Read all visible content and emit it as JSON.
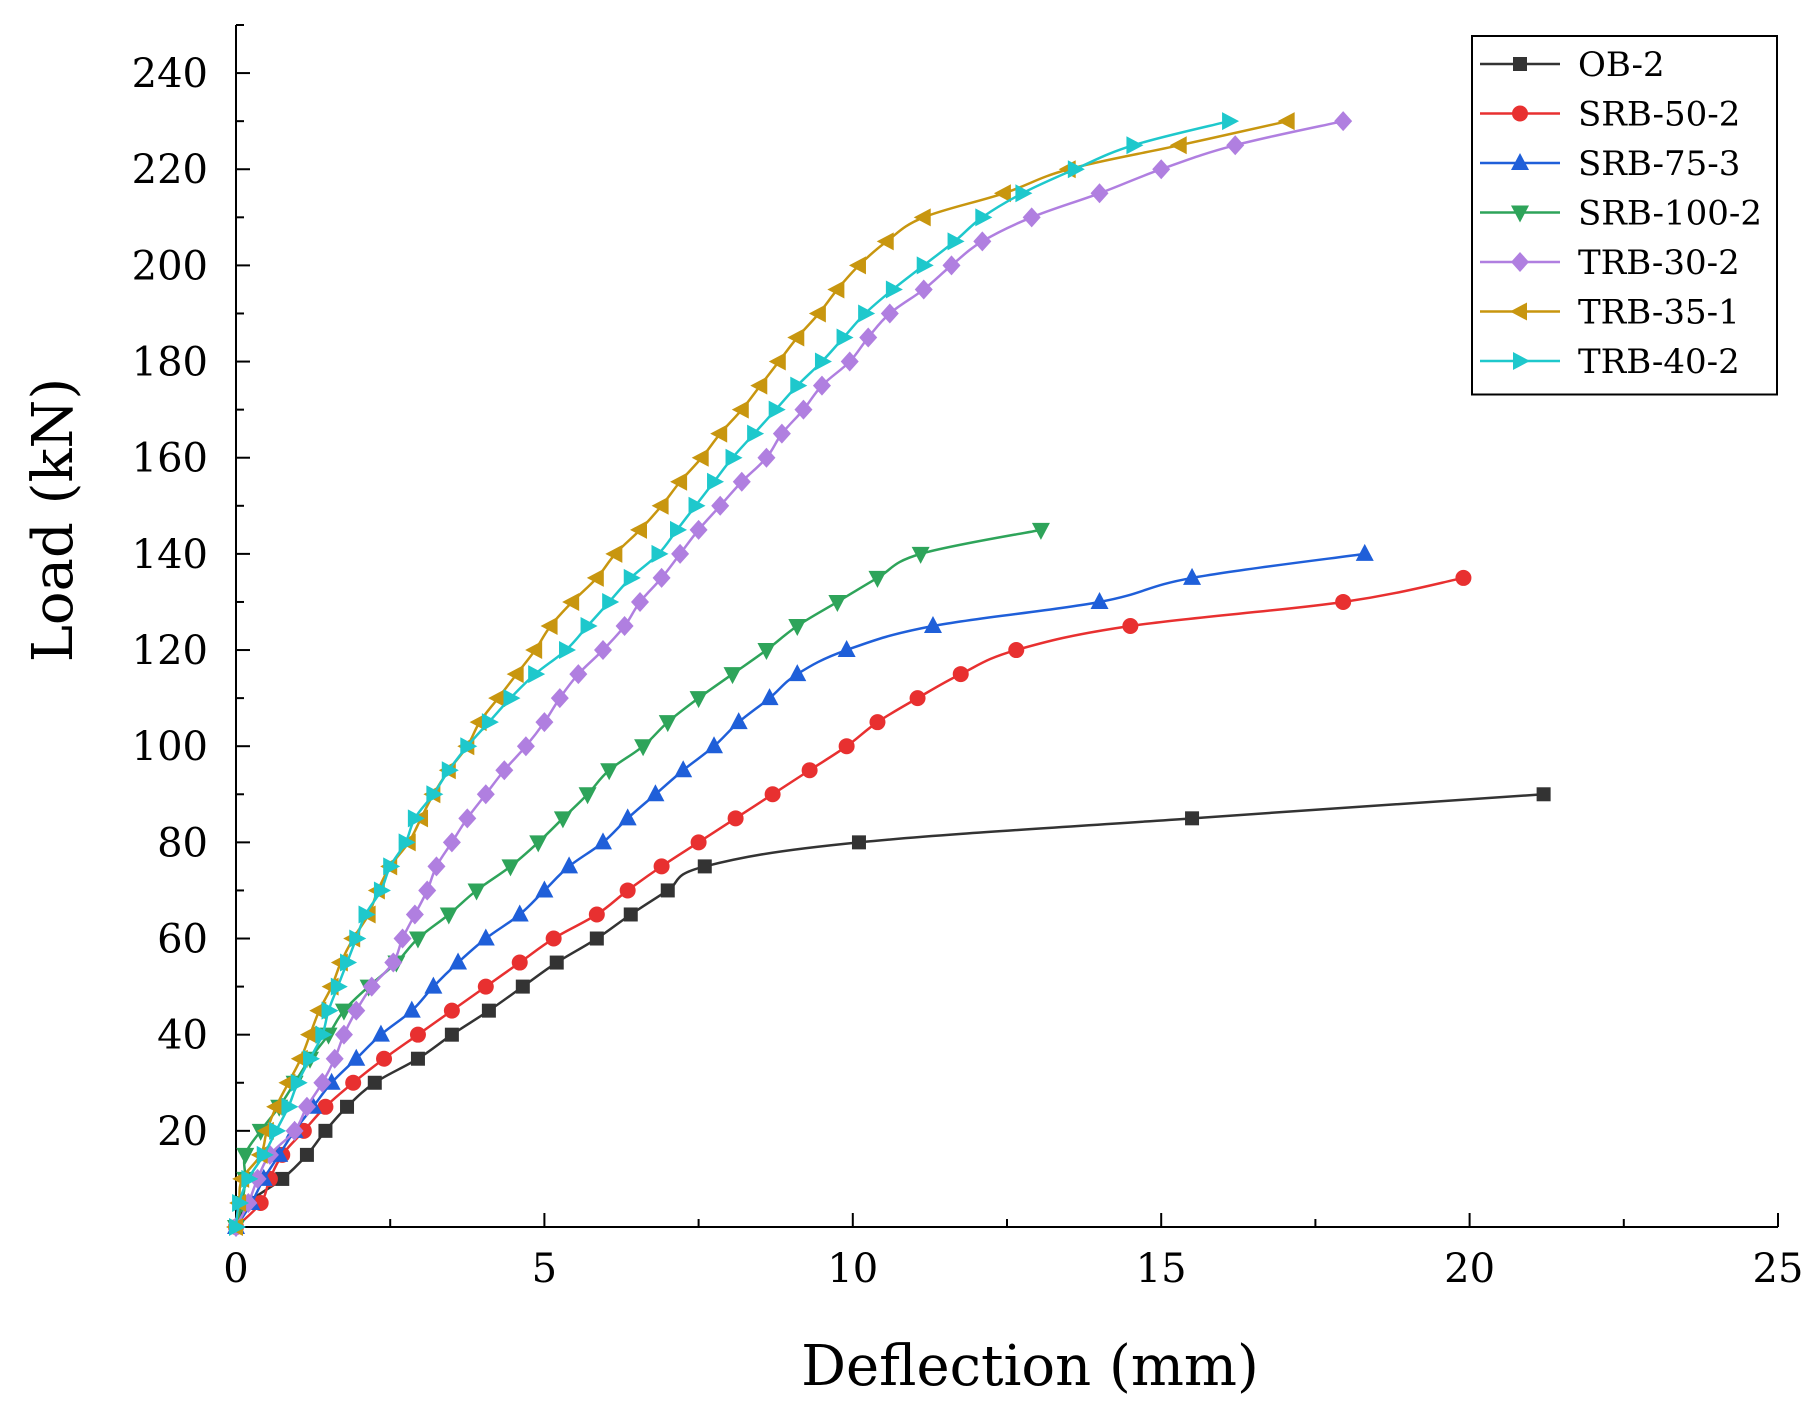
{
  "chart_data": {
    "type": "line",
    "title": "",
    "xlabel": "Deflection (mm)",
    "ylabel": "Load (kN)",
    "xlim": [
      0,
      25
    ],
    "ylim": [
      0,
      250
    ],
    "xticks": [
      0,
      5,
      10,
      15,
      20,
      25
    ],
    "yticks": [
      20,
      40,
      60,
      80,
      100,
      120,
      140,
      160,
      180,
      200,
      220,
      240
    ],
    "legend_position": "top-right",
    "series": [
      {
        "name": "OB-2",
        "color": "#333333",
        "marker": "square",
        "points": [
          [
            0,
            0
          ],
          [
            0.2,
            5
          ],
          [
            0.75,
            10
          ],
          [
            1.15,
            15
          ],
          [
            1.45,
            20
          ],
          [
            1.8,
            25
          ],
          [
            2.25,
            30
          ],
          [
            2.95,
            35
          ],
          [
            3.5,
            40
          ],
          [
            4.1,
            45
          ],
          [
            4.65,
            50
          ],
          [
            5.2,
            55
          ],
          [
            5.85,
            60
          ],
          [
            6.4,
            65
          ],
          [
            7.0,
            70
          ],
          [
            7.6,
            75
          ],
          [
            10.1,
            80
          ],
          [
            15.5,
            85
          ],
          [
            21.2,
            90
          ]
        ]
      },
      {
        "name": "SRB-50-2",
        "color": "#e83030",
        "marker": "circle",
        "points": [
          [
            0,
            0
          ],
          [
            0.4,
            5
          ],
          [
            0.55,
            10
          ],
          [
            0.75,
            15
          ],
          [
            1.1,
            20
          ],
          [
            1.45,
            25
          ],
          [
            1.9,
            30
          ],
          [
            2.4,
            35
          ],
          [
            2.95,
            40
          ],
          [
            3.5,
            45
          ],
          [
            4.05,
            50
          ],
          [
            4.6,
            55
          ],
          [
            5.15,
            60
          ],
          [
            5.85,
            65
          ],
          [
            6.35,
            70
          ],
          [
            6.9,
            75
          ],
          [
            7.5,
            80
          ],
          [
            8.1,
            85
          ],
          [
            8.7,
            90
          ],
          [
            9.3,
            95
          ],
          [
            9.9,
            100
          ],
          [
            10.4,
            105
          ],
          [
            11.05,
            110
          ],
          [
            11.75,
            115
          ],
          [
            12.65,
            120
          ],
          [
            14.5,
            125
          ],
          [
            17.95,
            130
          ],
          [
            19.9,
            135
          ]
        ]
      },
      {
        "name": "SRB-75-3",
        "color": "#1f5fd9",
        "marker": "triangle-up",
        "points": [
          [
            0,
            0
          ],
          [
            0.25,
            5
          ],
          [
            0.45,
            10
          ],
          [
            0.7,
            15
          ],
          [
            0.95,
            20
          ],
          [
            1.25,
            25
          ],
          [
            1.55,
            30
          ],
          [
            1.95,
            35
          ],
          [
            2.35,
            40
          ],
          [
            2.85,
            45
          ],
          [
            3.2,
            50
          ],
          [
            3.6,
            55
          ],
          [
            4.05,
            60
          ],
          [
            4.6,
            65
          ],
          [
            5.0,
            70
          ],
          [
            5.4,
            75
          ],
          [
            5.95,
            80
          ],
          [
            6.35,
            85
          ],
          [
            6.8,
            90
          ],
          [
            7.25,
            95
          ],
          [
            7.75,
            100
          ],
          [
            8.15,
            105
          ],
          [
            8.65,
            110
          ],
          [
            9.1,
            115
          ],
          [
            9.9,
            120
          ],
          [
            11.3,
            125
          ],
          [
            14.0,
            130
          ],
          [
            15.5,
            135
          ],
          [
            18.3,
            140
          ]
        ]
      },
      {
        "name": "SRB-100-2",
        "color": "#2ea45a",
        "marker": "triangle-down",
        "points": [
          [
            0,
            0
          ],
          [
            0.1,
            5
          ],
          [
            0.15,
            10
          ],
          [
            0.15,
            15
          ],
          [
            0.4,
            20
          ],
          [
            0.7,
            25
          ],
          [
            0.95,
            30
          ],
          [
            1.2,
            35
          ],
          [
            1.5,
            40
          ],
          [
            1.75,
            45
          ],
          [
            2.15,
            50
          ],
          [
            2.6,
            55
          ],
          [
            2.95,
            60
          ],
          [
            3.45,
            65
          ],
          [
            3.9,
            70
          ],
          [
            4.45,
            75
          ],
          [
            4.9,
            80
          ],
          [
            5.3,
            85
          ],
          [
            5.7,
            90
          ],
          [
            6.05,
            95
          ],
          [
            6.6,
            100
          ],
          [
            7.0,
            105
          ],
          [
            7.5,
            110
          ],
          [
            8.05,
            115
          ],
          [
            8.6,
            120
          ],
          [
            9.1,
            125
          ],
          [
            9.75,
            130
          ],
          [
            10.4,
            135
          ],
          [
            11.1,
            140
          ],
          [
            13.05,
            145
          ]
        ]
      },
      {
        "name": "TRB-30-2",
        "color": "#b07fe0",
        "marker": "diamond",
        "points": [
          [
            0,
            0
          ],
          [
            0.2,
            5
          ],
          [
            0.35,
            10
          ],
          [
            0.55,
            15
          ],
          [
            0.95,
            20
          ],
          [
            1.15,
            25
          ],
          [
            1.4,
            30
          ],
          [
            1.6,
            35
          ],
          [
            1.75,
            40
          ],
          [
            1.95,
            45
          ],
          [
            2.2,
            50
          ],
          [
            2.55,
            55
          ],
          [
            2.7,
            60
          ],
          [
            2.9,
            65
          ],
          [
            3.1,
            70
          ],
          [
            3.25,
            75
          ],
          [
            3.5,
            80
          ],
          [
            3.75,
            85
          ],
          [
            4.05,
            90
          ],
          [
            4.35,
            95
          ],
          [
            4.7,
            100
          ],
          [
            5.0,
            105
          ],
          [
            5.25,
            110
          ],
          [
            5.55,
            115
          ],
          [
            5.95,
            120
          ],
          [
            6.3,
            125
          ],
          [
            6.55,
            130
          ],
          [
            6.9,
            135
          ],
          [
            7.2,
            140
          ],
          [
            7.5,
            145
          ],
          [
            7.85,
            150
          ],
          [
            8.2,
            155
          ],
          [
            8.6,
            160
          ],
          [
            8.85,
            165
          ],
          [
            9.2,
            170
          ],
          [
            9.5,
            175
          ],
          [
            9.95,
            180
          ],
          [
            10.25,
            185
          ],
          [
            10.6,
            190
          ],
          [
            11.15,
            195
          ],
          [
            11.6,
            200
          ],
          [
            12.1,
            205
          ],
          [
            12.9,
            210
          ],
          [
            14.0,
            215
          ],
          [
            15.0,
            220
          ],
          [
            16.2,
            225
          ],
          [
            17.95,
            230
          ]
        ]
      },
      {
        "name": "TRB-35-1",
        "color": "#c8960f",
        "marker": "triangle-left",
        "points": [
          [
            0,
            0
          ],
          [
            0.05,
            5
          ],
          [
            0.1,
            10
          ],
          [
            0.4,
            15
          ],
          [
            0.5,
            20
          ],
          [
            0.65,
            25
          ],
          [
            0.85,
            30
          ],
          [
            1.05,
            35
          ],
          [
            1.2,
            40
          ],
          [
            1.35,
            45
          ],
          [
            1.55,
            50
          ],
          [
            1.7,
            55
          ],
          [
            1.9,
            60
          ],
          [
            2.15,
            65
          ],
          [
            2.3,
            70
          ],
          [
            2.5,
            75
          ],
          [
            2.8,
            80
          ],
          [
            3.0,
            85
          ],
          [
            3.2,
            90
          ],
          [
            3.45,
            95
          ],
          [
            3.75,
            100
          ],
          [
            3.95,
            105
          ],
          [
            4.25,
            110
          ],
          [
            4.55,
            115
          ],
          [
            4.85,
            120
          ],
          [
            5.1,
            125
          ],
          [
            5.45,
            130
          ],
          [
            5.85,
            135
          ],
          [
            6.15,
            140
          ],
          [
            6.55,
            145
          ],
          [
            6.9,
            150
          ],
          [
            7.2,
            155
          ],
          [
            7.55,
            160
          ],
          [
            7.85,
            165
          ],
          [
            8.2,
            170
          ],
          [
            8.5,
            175
          ],
          [
            8.8,
            180
          ],
          [
            9.1,
            185
          ],
          [
            9.45,
            190
          ],
          [
            9.75,
            195
          ],
          [
            10.1,
            200
          ],
          [
            10.55,
            205
          ],
          [
            11.15,
            210
          ],
          [
            12.45,
            215
          ],
          [
            13.5,
            220
          ],
          [
            15.3,
            225
          ],
          [
            17.05,
            230
          ]
        ]
      },
      {
        "name": "TRB-40-2",
        "color": "#1ec8cc",
        "marker": "triangle-right",
        "points": [
          [
            0,
            0
          ],
          [
            0.05,
            5
          ],
          [
            0.2,
            10
          ],
          [
            0.45,
            15
          ],
          [
            0.65,
            20
          ],
          [
            0.85,
            25
          ],
          [
            1.0,
            30
          ],
          [
            1.2,
            35
          ],
          [
            1.4,
            40
          ],
          [
            1.5,
            45
          ],
          [
            1.65,
            50
          ],
          [
            1.8,
            55
          ],
          [
            1.95,
            60
          ],
          [
            2.1,
            65
          ],
          [
            2.35,
            70
          ],
          [
            2.5,
            75
          ],
          [
            2.75,
            80
          ],
          [
            2.9,
            85
          ],
          [
            3.2,
            90
          ],
          [
            3.45,
            95
          ],
          [
            3.75,
            100
          ],
          [
            4.1,
            105
          ],
          [
            4.45,
            110
          ],
          [
            4.85,
            115
          ],
          [
            5.35,
            120
          ],
          [
            5.7,
            125
          ],
          [
            6.05,
            130
          ],
          [
            6.4,
            135
          ],
          [
            6.85,
            140
          ],
          [
            7.15,
            145
          ],
          [
            7.45,
            150
          ],
          [
            7.75,
            155
          ],
          [
            8.05,
            160
          ],
          [
            8.4,
            165
          ],
          [
            8.75,
            170
          ],
          [
            9.1,
            175
          ],
          [
            9.5,
            180
          ],
          [
            9.85,
            185
          ],
          [
            10.2,
            190
          ],
          [
            10.65,
            195
          ],
          [
            11.15,
            200
          ],
          [
            11.65,
            205
          ],
          [
            12.1,
            210
          ],
          [
            12.75,
            215
          ],
          [
            13.6,
            220
          ],
          [
            14.55,
            225
          ],
          [
            16.1,
            230
          ]
        ]
      }
    ]
  }
}
